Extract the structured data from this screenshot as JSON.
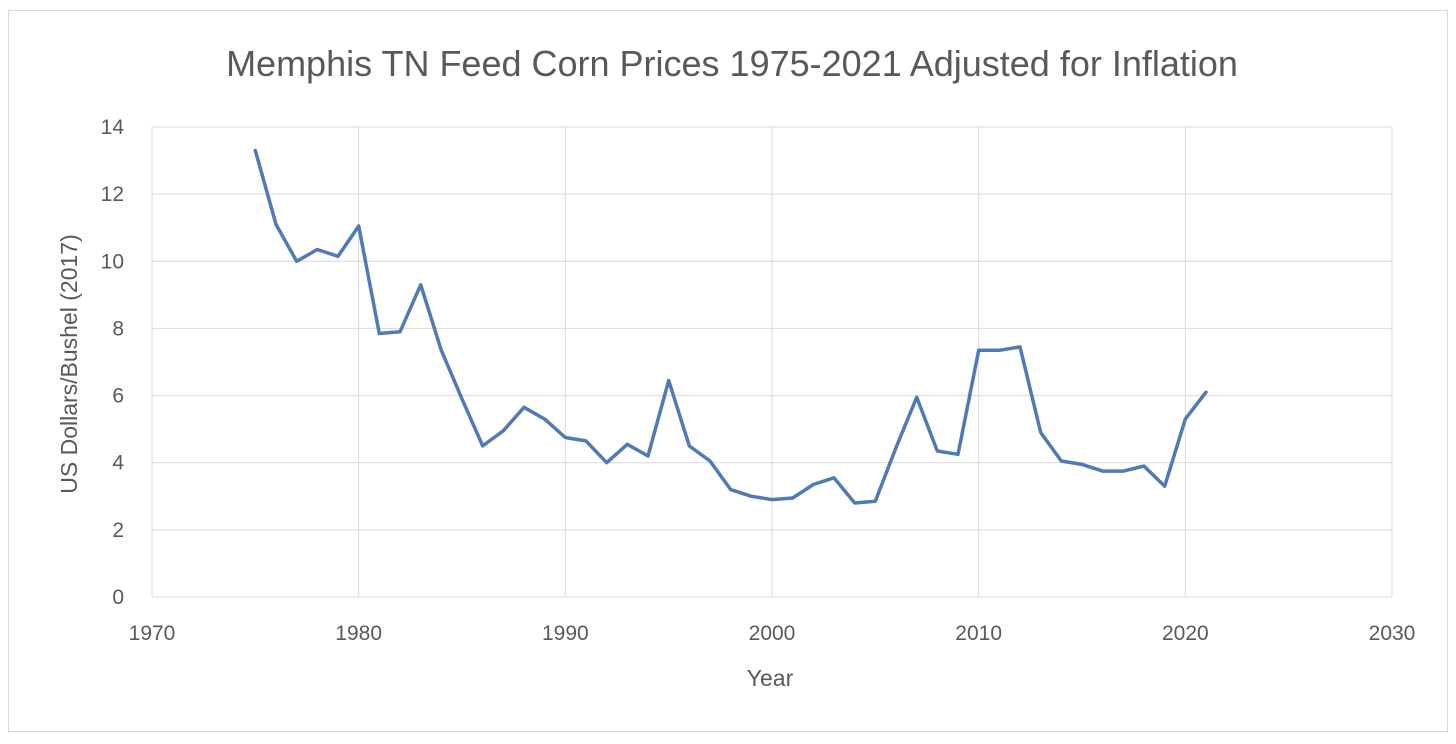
{
  "chart_data": {
    "type": "line",
    "title": "Memphis TN Feed Corn Prices 1975-2021 Adjusted for Inflation",
    "xlabel": "Year",
    "ylabel": "US Dollars/Bushel (2017)",
    "xlim": [
      1970,
      2030
    ],
    "ylim": [
      0,
      14
    ],
    "x_ticks": [
      1970,
      1980,
      1990,
      2000,
      2010,
      2020,
      2030
    ],
    "y_ticks": [
      0,
      2,
      4,
      6,
      8,
      10,
      12,
      14
    ],
    "grid": true,
    "legend": "none",
    "color": "#4f7ab5",
    "x": [
      1975,
      1976,
      1977,
      1978,
      1979,
      1980,
      1981,
      1982,
      1983,
      1984,
      1985,
      1986,
      1987,
      1988,
      1989,
      1990,
      1991,
      1992,
      1993,
      1994,
      1995,
      1996,
      1997,
      1998,
      1999,
      2000,
      2001,
      2002,
      2003,
      2004,
      2005,
      2006,
      2007,
      2008,
      2009,
      2010,
      2011,
      2012,
      2013,
      2014,
      2015,
      2016,
      2017,
      2018,
      2019,
      2020,
      2021
    ],
    "y": [
      13.3,
      11.1,
      10.0,
      10.35,
      10.15,
      11.05,
      7.85,
      7.9,
      9.3,
      7.35,
      5.9,
      4.5,
      4.95,
      5.65,
      5.3,
      4.75,
      4.65,
      4.0,
      4.55,
      4.2,
      6.45,
      4.5,
      4.05,
      3.2,
      3.0,
      2.9,
      2.95,
      3.35,
      3.55,
      2.8,
      2.85,
      4.45,
      5.95,
      4.35,
      4.25,
      7.35,
      7.35,
      7.45,
      4.9,
      4.05,
      3.95,
      3.75,
      3.75,
      3.9,
      3.3,
      5.3,
      6.1
    ]
  }
}
